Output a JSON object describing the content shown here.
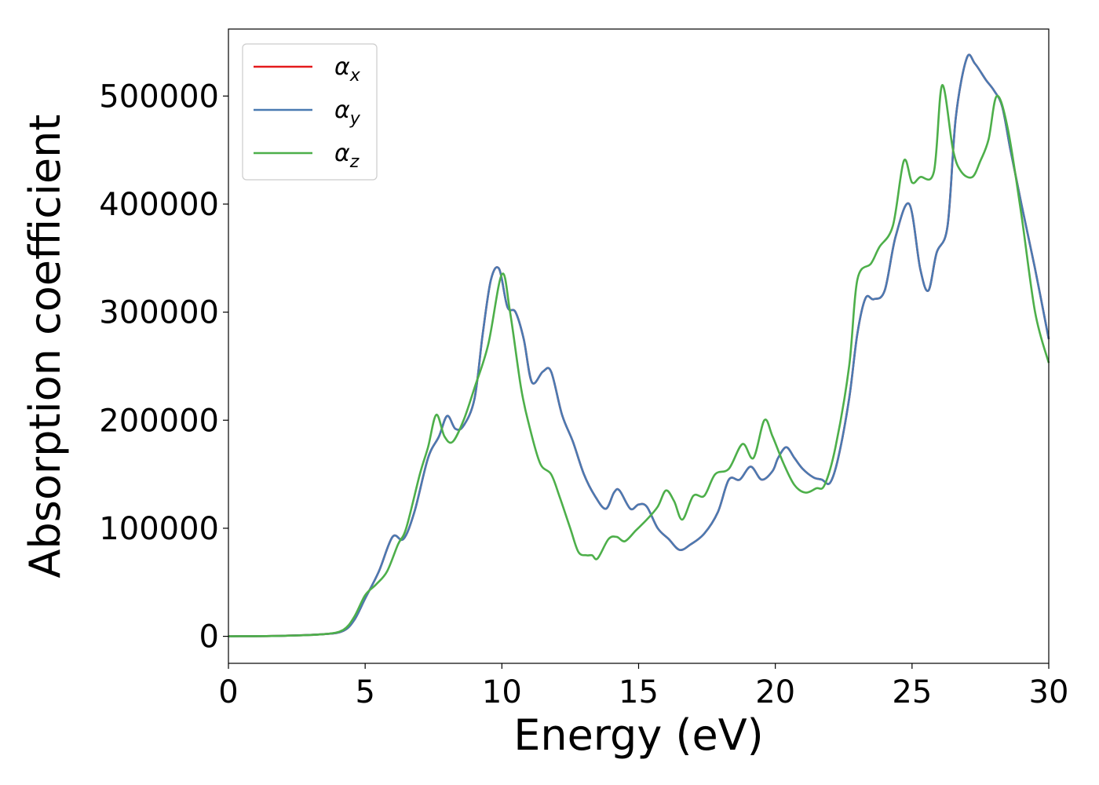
{
  "chart_data": {
    "type": "line",
    "title": "",
    "xlabel": "Energy (eV)",
    "ylabel": "Absorption coefficient",
    "xlim": [
      0,
      30
    ],
    "ylim": [
      -25000,
      562000
    ],
    "xticks": [
      0,
      5,
      10,
      15,
      20,
      25,
      30
    ],
    "xtick_labels": [
      "0",
      "5",
      "10",
      "15",
      "20",
      "25",
      "30"
    ],
    "yticks": [
      0,
      100000,
      200000,
      300000,
      400000,
      500000
    ],
    "ytick_labels": [
      "0",
      "100000",
      "200000",
      "300000",
      "400000",
      "500000"
    ],
    "grid": false,
    "legend_position": "top-left",
    "series": [
      {
        "name": "α",
        "subscript": "x",
        "color": "#e41a1c",
        "x": [
          0,
          2,
          3.5,
          4.2,
          4.6,
          5.0,
          5.5,
          6.0,
          6.4,
          6.8,
          7.3,
          7.7,
          8.0,
          8.3,
          8.6,
          9.0,
          9.3,
          9.6,
          9.9,
          10.2,
          10.5,
          10.8,
          11.1,
          11.5,
          11.8,
          12.2,
          12.6,
          13.0,
          13.4,
          13.8,
          14.1,
          14.3,
          14.7,
          15.0,
          15.3,
          15.7,
          16.1,
          16.5,
          16.9,
          17.4,
          17.9,
          18.3,
          18.7,
          19.1,
          19.5,
          19.9,
          20.1,
          20.4,
          20.7,
          21.0,
          21.4,
          21.7,
          22.0,
          22.3,
          22.7,
          23.0,
          23.3,
          23.6,
          24.0,
          24.4,
          24.9,
          25.3,
          25.6,
          25.9,
          26.3,
          26.6,
          27.0,
          27.3,
          27.7,
          28.0,
          28.3,
          28.6,
          29.0,
          29.5,
          30.0
        ],
        "y": [
          0,
          500,
          2000,
          5000,
          15000,
          35000,
          60000,
          92000,
          90000,
          115000,
          165000,
          185000,
          204000,
          192000,
          195000,
          220000,
          280000,
          330000,
          340000,
          305000,
          300000,
          275000,
          235000,
          245000,
          245000,
          205000,
          180000,
          150000,
          130000,
          118000,
          133000,
          135000,
          118000,
          122000,
          120000,
          100000,
          90000,
          80000,
          85000,
          95000,
          115000,
          145000,
          145000,
          157000,
          145000,
          153000,
          165000,
          175000,
          165000,
          155000,
          147000,
          145000,
          142000,
          165000,
          220000,
          280000,
          313000,
          312000,
          320000,
          370000,
          400000,
          340000,
          320000,
          355000,
          380000,
          480000,
          535000,
          530000,
          515000,
          505000,
          490000,
          450000,
          400000,
          340000,
          275000
        ]
      },
      {
        "name": "α",
        "subscript": "y",
        "color": "#4a7ab2",
        "x": [
          0,
          2,
          3.5,
          4.2,
          4.6,
          5.0,
          5.5,
          6.0,
          6.4,
          6.8,
          7.3,
          7.7,
          8.0,
          8.3,
          8.6,
          9.0,
          9.3,
          9.6,
          9.9,
          10.2,
          10.5,
          10.8,
          11.1,
          11.5,
          11.8,
          12.2,
          12.6,
          13.0,
          13.4,
          13.8,
          14.1,
          14.3,
          14.7,
          15.0,
          15.3,
          15.7,
          16.1,
          16.5,
          16.9,
          17.4,
          17.9,
          18.3,
          18.7,
          19.1,
          19.5,
          19.9,
          20.1,
          20.4,
          20.7,
          21.0,
          21.4,
          21.7,
          22.0,
          22.3,
          22.7,
          23.0,
          23.3,
          23.6,
          24.0,
          24.4,
          24.9,
          25.3,
          25.6,
          25.9,
          26.3,
          26.6,
          27.0,
          27.3,
          27.7,
          28.0,
          28.3,
          28.6,
          29.0,
          29.5,
          30.0
        ],
        "y": [
          0,
          500,
          2000,
          5000,
          15000,
          35000,
          60000,
          92000,
          90000,
          115000,
          165000,
          185000,
          204000,
          192000,
          195000,
          220000,
          280000,
          330000,
          340000,
          305000,
          300000,
          275000,
          235000,
          245000,
          245000,
          205000,
          180000,
          150000,
          130000,
          118000,
          133000,
          135000,
          118000,
          122000,
          120000,
          100000,
          90000,
          80000,
          85000,
          95000,
          115000,
          145000,
          145000,
          157000,
          145000,
          153000,
          165000,
          175000,
          165000,
          155000,
          147000,
          145000,
          142000,
          165000,
          220000,
          280000,
          313000,
          312000,
          320000,
          370000,
          400000,
          340000,
          320000,
          355000,
          380000,
          480000,
          535000,
          530000,
          515000,
          505000,
          490000,
          450000,
          400000,
          340000,
          275000
        ]
      },
      {
        "name": "α",
        "subscript": "z",
        "color": "#4daf4a",
        "x": [
          0,
          2,
          3.5,
          4.2,
          4.6,
          5.0,
          5.4,
          5.8,
          6.2,
          6.5,
          7.0,
          7.3,
          7.6,
          7.9,
          8.2,
          8.6,
          9.0,
          9.5,
          10.0,
          10.3,
          10.7,
          11.0,
          11.4,
          11.8,
          12.1,
          12.5,
          12.8,
          13.1,
          13.3,
          13.5,
          13.9,
          14.2,
          14.5,
          14.9,
          15.3,
          15.7,
          16.0,
          16.3,
          16.6,
          17.0,
          17.4,
          17.8,
          18.3,
          18.8,
          19.2,
          19.6,
          19.9,
          20.3,
          20.7,
          21.1,
          21.5,
          21.8,
          22.2,
          22.7,
          23.0,
          23.5,
          23.8,
          24.3,
          24.7,
          25.0,
          25.3,
          25.8,
          26.1,
          26.5,
          26.8,
          27.2,
          27.5,
          27.8,
          28.1,
          28.5,
          29.0,
          29.5,
          30.0
        ],
        "y": [
          0,
          500,
          2000,
          6000,
          18000,
          38000,
          48000,
          60000,
          85000,
          100000,
          150000,
          175000,
          205000,
          185000,
          180000,
          200000,
          230000,
          270000,
          335000,
          300000,
          230000,
          195000,
          160000,
          150000,
          130000,
          100000,
          78000,
          75000,
          75000,
          72000,
          90000,
          92000,
          88000,
          98000,
          108000,
          120000,
          135000,
          125000,
          108000,
          130000,
          130000,
          150000,
          155000,
          178000,
          165000,
          200000,
          185000,
          160000,
          140000,
          133000,
          137000,
          140000,
          175000,
          250000,
          330000,
          345000,
          360000,
          380000,
          440000,
          420000,
          425000,
          430000,
          510000,
          450000,
          430000,
          425000,
          440000,
          460000,
          500000,
          470000,
          390000,
          300000,
          253000
        ]
      }
    ]
  }
}
